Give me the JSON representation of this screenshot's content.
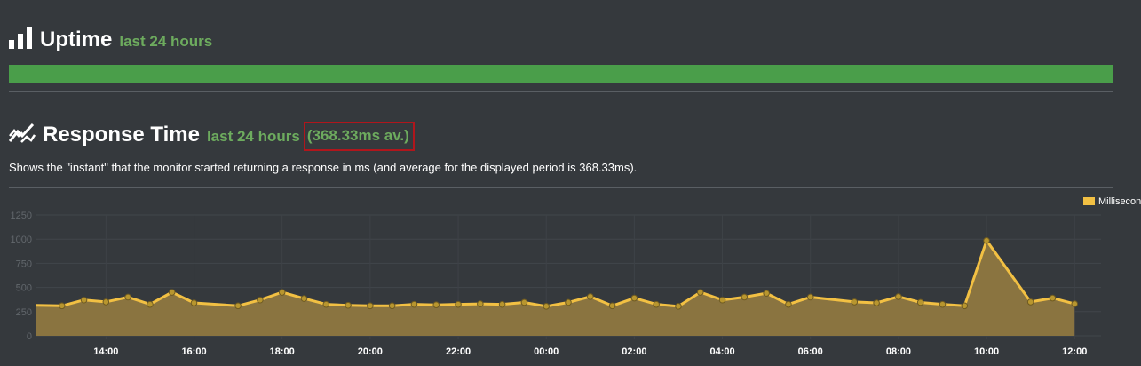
{
  "uptime": {
    "title": "Uptime",
    "subtitle": "last 24 hours",
    "bar_color": "#4a9e4a",
    "icon": "bar-chart-icon"
  },
  "response": {
    "title": "Response Time",
    "subtitle": "last 24 hours",
    "average": "(368.33ms av.)",
    "description": "Shows the \"instant\" that the monitor started returning a response in ms (and average for the displayed period is 368.33ms).",
    "icon": "line-chart-icon"
  },
  "chart_data": {
    "type": "area",
    "title": "",
    "xlabel": "",
    "ylabel": "",
    "ylim": [
      0,
      1250
    ],
    "yticks": [
      "0",
      "250",
      "500",
      "750",
      "1000",
      "1250"
    ],
    "xticks": [
      "14:00",
      "16:00",
      "18:00",
      "20:00",
      "22:00",
      "00:00",
      "02:00",
      "04:00",
      "06:00",
      "08:00",
      "10:00",
      "12:00"
    ],
    "xtick_values": [
      14,
      16,
      18,
      20,
      22,
      24,
      26,
      28,
      30,
      32,
      34,
      36
    ],
    "xlim": [
      12.4,
      36.6
    ],
    "grid": true,
    "legend_position": "top-right",
    "line_color": "#f2c043",
    "fill_color": "#8a7440",
    "series": [
      {
        "name": "Milliseconds",
        "x": [
          12.4,
          13.0,
          13.5,
          14.0,
          14.5,
          15.0,
          15.5,
          16.0,
          17.0,
          17.5,
          18.0,
          18.5,
          19.0,
          19.5,
          20.0,
          20.5,
          21.0,
          21.5,
          22.0,
          22.5,
          23.0,
          23.5,
          24.0,
          24.5,
          25.0,
          25.5,
          26.0,
          26.5,
          27.0,
          27.5,
          28.0,
          28.5,
          29.0,
          29.5,
          30.0,
          31.0,
          31.5,
          32.0,
          32.5,
          33.0,
          33.5,
          34.0,
          35.0,
          35.5,
          36.0
        ],
        "values": [
          315,
          310,
          370,
          350,
          400,
          325,
          450,
          340,
          310,
          370,
          450,
          385,
          325,
          315,
          310,
          310,
          325,
          320,
          325,
          330,
          325,
          345,
          305,
          345,
          405,
          310,
          390,
          325,
          305,
          450,
          370,
          400,
          440,
          325,
          400,
          350,
          340,
          405,
          345,
          325,
          310,
          985,
          350,
          390,
          330
        ]
      }
    ]
  }
}
